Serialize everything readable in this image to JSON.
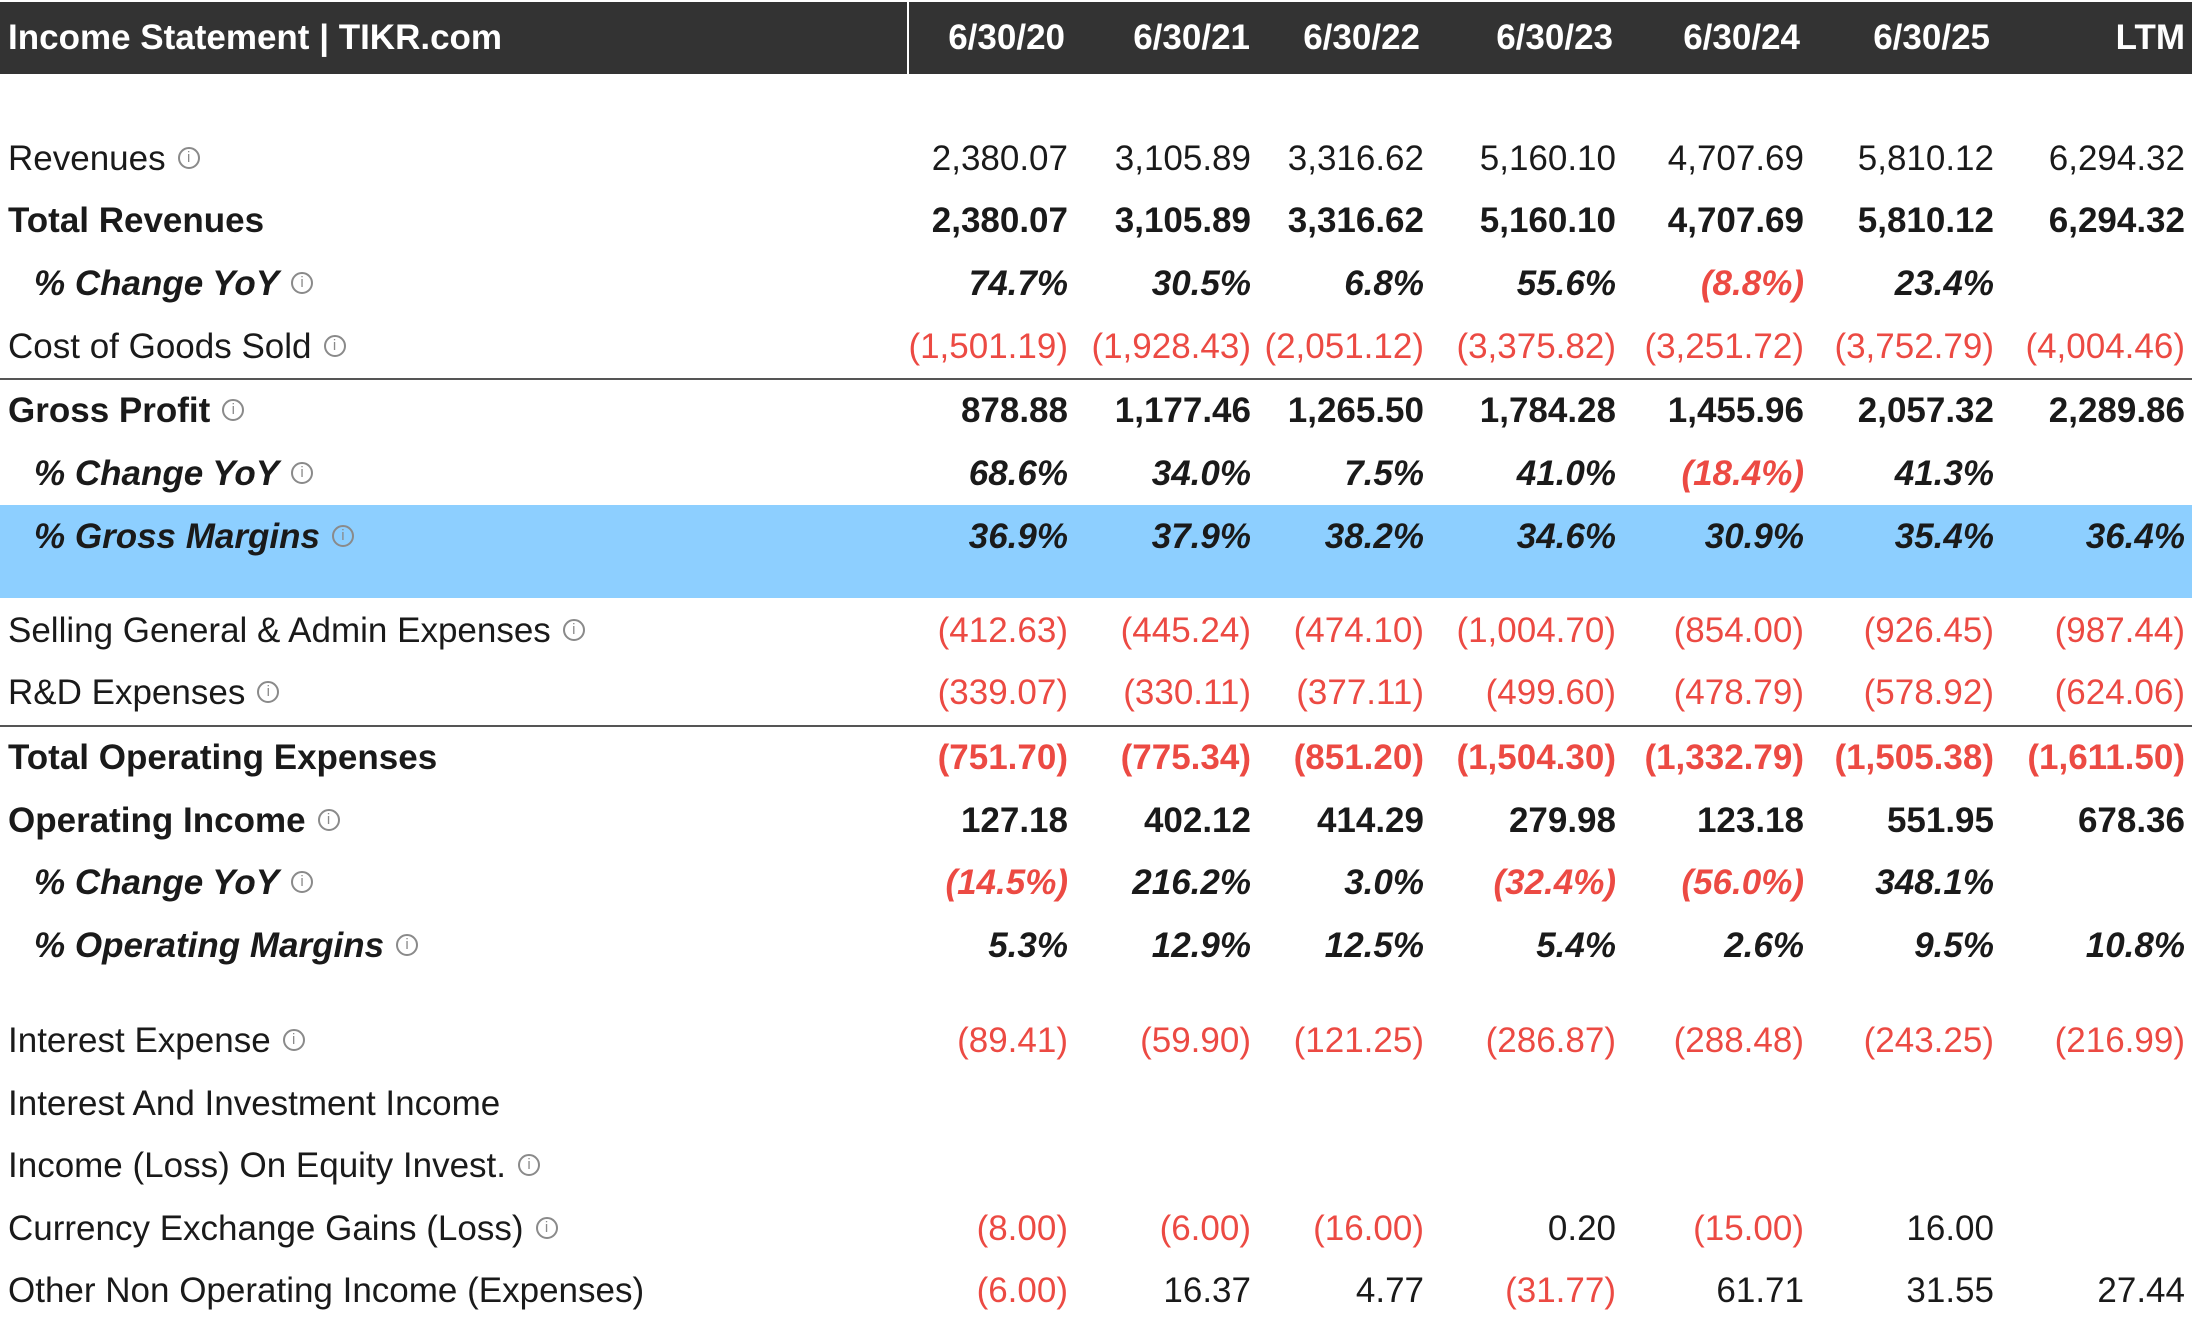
{
  "header": {
    "title": "Income Statement | TIKR.com",
    "columns": [
      "6/30/20",
      "6/30/21",
      "6/30/22",
      "6/30/23",
      "6/30/24",
      "6/30/25",
      "LTM"
    ]
  },
  "rows": [
    {
      "label": "Revenues",
      "info": true,
      "values": [
        "2,380.07",
        "3,105.89",
        "3,316.62",
        "5,160.10",
        "4,707.69",
        "5,810.12",
        "6,294.32"
      ]
    },
    {
      "label": "Total Revenues",
      "bold": true,
      "values": [
        "2,380.07",
        "3,105.89",
        "3,316.62",
        "5,160.10",
        "4,707.69",
        "5,810.12",
        "6,294.32"
      ]
    },
    {
      "label": "% Change YoY",
      "info": true,
      "bold": true,
      "italic": true,
      "indent": true,
      "values": [
        "74.7%",
        "30.5%",
        "6.8%",
        "55.6%",
        "(8.8%)",
        "23.4%",
        ""
      ]
    },
    {
      "label": "Cost of Goods Sold",
      "info": true,
      "values": [
        "(1,501.19)",
        "(1,928.43)",
        "(2,051.12)",
        "(3,375.82)",
        "(3,251.72)",
        "(3,752.79)",
        "(4,004.46)"
      ]
    },
    {
      "label": "Gross Profit",
      "info": true,
      "bold": true,
      "values": [
        "878.88",
        "1,177.46",
        "1,265.50",
        "1,784.28",
        "1,455.96",
        "2,057.32",
        "2,289.86"
      ]
    },
    {
      "label": "% Change YoY",
      "info": true,
      "bold": true,
      "italic": true,
      "indent": true,
      "values": [
        "68.6%",
        "34.0%",
        "7.5%",
        "41.0%",
        "(18.4%)",
        "41.3%",
        ""
      ]
    },
    {
      "label": "% Gross Margins",
      "info": true,
      "bold": true,
      "italic": true,
      "indent": true,
      "highlight": true,
      "values": [
        "36.9%",
        "37.9%",
        "38.2%",
        "34.6%",
        "30.9%",
        "35.4%",
        "36.4%"
      ]
    },
    {
      "label": "Selling General & Admin Expenses",
      "info": true,
      "values": [
        "(412.63)",
        "(445.24)",
        "(474.10)",
        "(1,004.70)",
        "(854.00)",
        "(926.45)",
        "(987.44)"
      ]
    },
    {
      "label": "R&D Expenses",
      "info": true,
      "values": [
        "(339.07)",
        "(330.11)",
        "(377.11)",
        "(499.60)",
        "(478.79)",
        "(578.92)",
        "(624.06)"
      ]
    },
    {
      "label": "Total Operating Expenses",
      "bold": true,
      "values": [
        "(751.70)",
        "(775.34)",
        "(851.20)",
        "(1,504.30)",
        "(1,332.79)",
        "(1,505.38)",
        "(1,611.50)"
      ]
    },
    {
      "label": "Operating Income",
      "info": true,
      "bold": true,
      "values": [
        "127.18",
        "402.12",
        "414.29",
        "279.98",
        "123.18",
        "551.95",
        "678.36"
      ]
    },
    {
      "label": "% Change YoY",
      "info": true,
      "bold": true,
      "italic": true,
      "indent": true,
      "values": [
        "(14.5%)",
        "216.2%",
        "3.0%",
        "(32.4%)",
        "(56.0%)",
        "348.1%",
        ""
      ]
    },
    {
      "label": "% Operating Margins",
      "info": true,
      "bold": true,
      "italic": true,
      "indent": true,
      "values": [
        "5.3%",
        "12.9%",
        "12.5%",
        "5.4%",
        "2.6%",
        "9.5%",
        "10.8%"
      ]
    },
    {
      "label": "Interest Expense",
      "info": true,
      "values": [
        "(89.41)",
        "(59.90)",
        "(121.25)",
        "(286.87)",
        "(288.48)",
        "(243.25)",
        "(216.99)"
      ]
    },
    {
      "label": "Interest And Investment Income",
      "values": [
        "",
        "",
        "",
        "",
        "",
        "",
        ""
      ]
    },
    {
      "label": "Income (Loss) On Equity Invest.",
      "info": true,
      "values": [
        "",
        "",
        "",
        "",
        "",
        "",
        ""
      ]
    },
    {
      "label": "Currency Exchange Gains (Loss)",
      "info": true,
      "values": [
        "(8.00)",
        "(6.00)",
        "(16.00)",
        "0.20",
        "(15.00)",
        "16.00",
        ""
      ]
    },
    {
      "label": "Other Non Operating Income (Expenses)",
      "values": [
        "(6.00)",
        "16.37",
        "4.77",
        "(31.77)",
        "61.71",
        "31.55",
        "27.44"
      ]
    }
  ],
  "info_glyph": "i",
  "colors": {
    "header_bg": "#333333",
    "highlight": "#8dcfff",
    "negative": "#ec4a43"
  }
}
